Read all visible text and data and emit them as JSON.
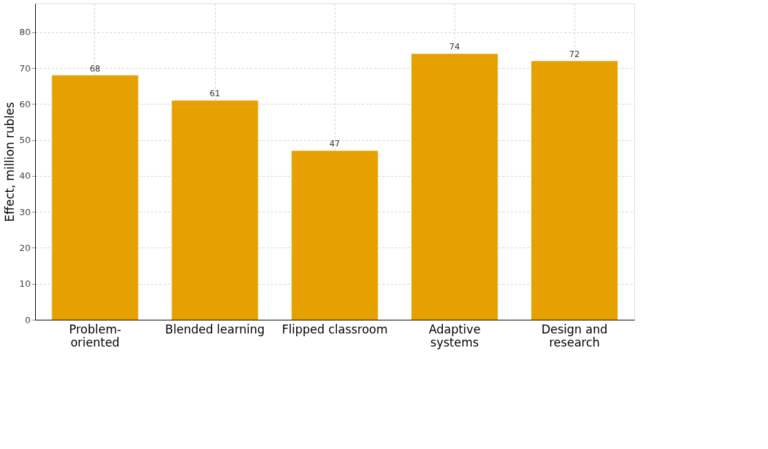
{
  "chart_data": {
    "type": "bar",
    "ylabel": "Effect, million rubles",
    "categories": [
      "Problem-\noriented",
      "Blended learning",
      "Flipped classroom",
      "Adaptive\nsystems",
      "Design and\nresearch"
    ],
    "values": [
      68,
      61,
      47,
      74,
      72
    ],
    "color": "#e6a100",
    "ylim": [
      0,
      88
    ],
    "yticks": [
      0,
      10,
      20,
      30,
      40,
      50,
      60,
      70,
      80
    ],
    "grid": true,
    "data_labels": true
  }
}
